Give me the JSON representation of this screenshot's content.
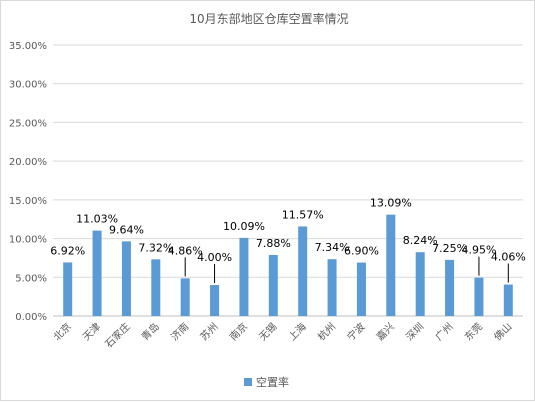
{
  "chart_data": {
    "type": "bar",
    "title": "10月东部地区仓库空置率情况",
    "categories": [
      "北京",
      "天津",
      "石家庄",
      "青岛",
      "济南",
      "苏州",
      "南京",
      "无锡",
      "上海",
      "杭州",
      "宁波",
      "嘉兴",
      "深圳",
      "广州",
      "东莞",
      "佛山"
    ],
    "series": [
      {
        "name": "空置率",
        "values": [
          6.92,
          11.03,
          9.64,
          7.32,
          4.86,
          4.0,
          10.09,
          7.88,
          11.57,
          7.34,
          6.9,
          13.09,
          8.24,
          7.25,
          4.95,
          4.06
        ],
        "labels": [
          "6.92%",
          "11.03%",
          "9.64%",
          "7.32%",
          "4.86%",
          "4.00%",
          "10.09%",
          "7.88%",
          "11.57%",
          "7.34%",
          "6.90%",
          "13.09%",
          "8.24%",
          "7.25%",
          "4.95%",
          "4.06%"
        ]
      }
    ],
    "yticks": [
      "0.00%",
      "5.00%",
      "10.00%",
      "15.00%",
      "20.00%",
      "25.00%",
      "30.00%",
      "35.00%"
    ],
    "ylim": [
      0,
      35
    ],
    "grid": true,
    "legend_position": "bottom",
    "bar_color": "#5b9bd5"
  }
}
